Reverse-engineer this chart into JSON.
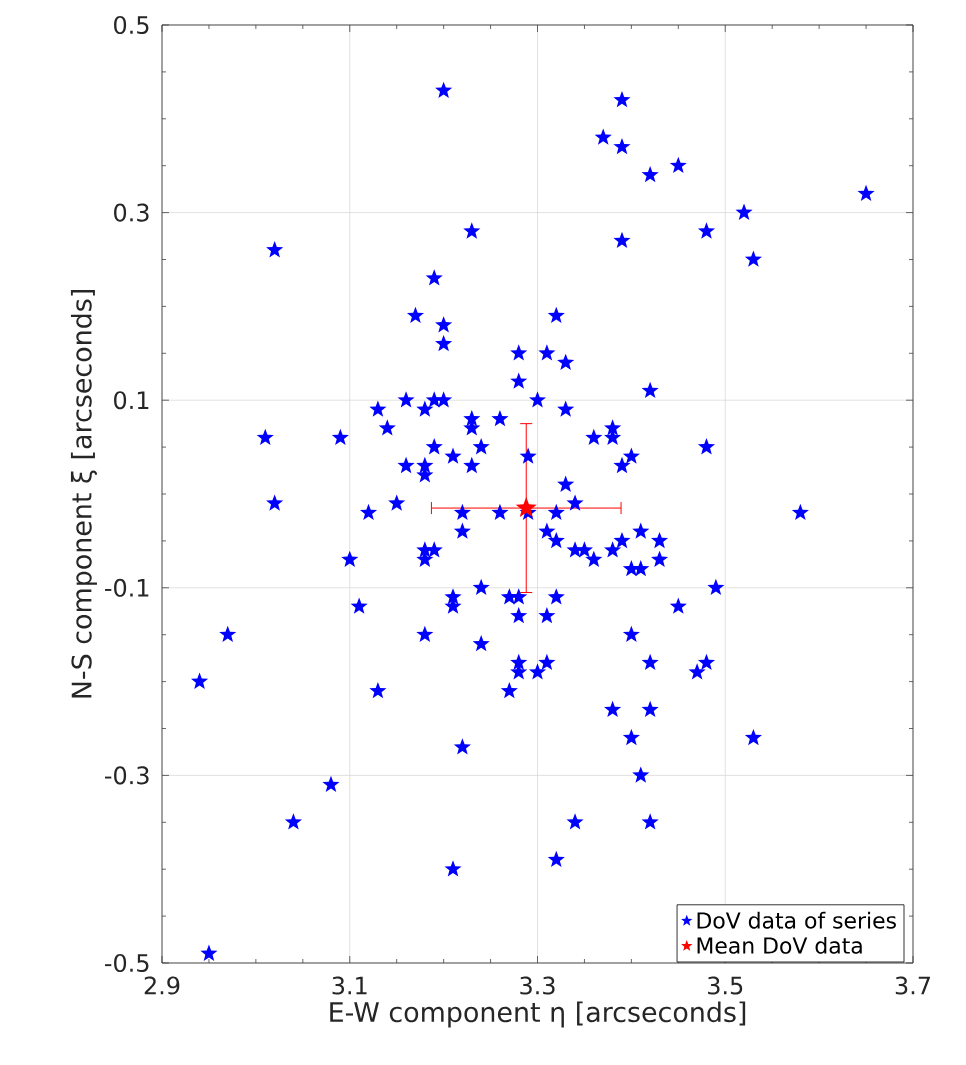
{
  "chart_data": {
    "type": "scatter",
    "xlabel": "E-W component η [arcseconds]",
    "ylabel": "N-S component ξ [arcseconds]",
    "xlim": [
      2.9,
      3.7
    ],
    "ylim": [
      -0.5,
      0.5
    ],
    "xticks": [
      2.9,
      3.1,
      3.3,
      3.5,
      3.7
    ],
    "yticks": [
      -0.5,
      -0.3,
      -0.1,
      0.1,
      0.3,
      0.5
    ],
    "grid": true,
    "legend": "bottom right",
    "marker": "star",
    "series": [
      {
        "name": "DoV data of series",
        "color": "#0000ff",
        "x": [
          3.2,
          3.39,
          3.37,
          3.39,
          3.42,
          3.45,
          3.65,
          3.52,
          3.39,
          3.48,
          3.53,
          3.02,
          3.23,
          3.19,
          3.17,
          3.32,
          3.2,
          3.2,
          3.28,
          3.31,
          3.33,
          3.28,
          3.42,
          3.16,
          3.19,
          3.2,
          3.3,
          3.13,
          3.18,
          3.33,
          3.23,
          3.26,
          3.23,
          3.14,
          3.38,
          3.38,
          3.36,
          3.09,
          3.01,
          3.24,
          3.19,
          3.48,
          3.21,
          3.29,
          3.4,
          3.16,
          3.18,
          3.23,
          3.39,
          3.18,
          3.33,
          3.15,
          3.34,
          3.02,
          3.12,
          3.22,
          3.26,
          3.29,
          3.32,
          3.58,
          3.22,
          3.31,
          3.41,
          3.32,
          3.39,
          3.43,
          3.18,
          3.19,
          3.34,
          3.35,
          3.38,
          3.18,
          3.1,
          3.36,
          3.43,
          3.4,
          3.41,
          3.24,
          3.49,
          3.21,
          3.27,
          3.28,
          3.32,
          3.21,
          3.11,
          3.45,
          3.28,
          3.31,
          3.18,
          3.4,
          2.97,
          3.24,
          3.28,
          3.31,
          3.42,
          3.48,
          3.28,
          3.3,
          3.47,
          3.13,
          3.27,
          2.94,
          3.38,
          3.42,
          3.4,
          3.53,
          3.22,
          3.41,
          3.08,
          3.04,
          3.34,
          3.42,
          3.32,
          3.21,
          2.95
        ],
        "values": [
          0.43,
          0.42,
          0.38,
          0.37,
          0.34,
          0.35,
          0.32,
          0.3,
          0.27,
          0.28,
          0.25,
          0.26,
          0.28,
          0.23,
          0.19,
          0.19,
          0.18,
          0.16,
          0.15,
          0.15,
          0.14,
          0.12,
          0.11,
          0.1,
          0.1,
          0.1,
          0.1,
          0.09,
          0.09,
          0.09,
          0.08,
          0.08,
          0.07,
          0.07,
          0.07,
          0.06,
          0.06,
          0.06,
          0.06,
          0.05,
          0.05,
          0.05,
          0.04,
          0.04,
          0.04,
          0.03,
          0.03,
          0.03,
          0.03,
          0.02,
          0.01,
          -0.01,
          -0.01,
          -0.01,
          -0.02,
          -0.02,
          -0.02,
          -0.02,
          -0.02,
          -0.02,
          -0.04,
          -0.04,
          -0.04,
          -0.05,
          -0.05,
          -0.05,
          -0.06,
          -0.06,
          -0.06,
          -0.06,
          -0.06,
          -0.07,
          -0.07,
          -0.07,
          -0.07,
          -0.08,
          -0.08,
          -0.1,
          -0.1,
          -0.11,
          -0.11,
          -0.11,
          -0.11,
          -0.12,
          -0.12,
          -0.12,
          -0.13,
          -0.13,
          -0.15,
          -0.15,
          -0.15,
          -0.16,
          -0.18,
          -0.18,
          -0.18,
          -0.18,
          -0.19,
          -0.19,
          -0.19,
          -0.21,
          -0.21,
          -0.2,
          -0.23,
          -0.23,
          -0.26,
          -0.26,
          -0.27,
          -0.3,
          -0.31,
          -0.35,
          -0.35,
          -0.35,
          -0.39,
          -0.4,
          -0.49
        ]
      },
      {
        "name": "Mean DoV data",
        "color": "#ff0000",
        "x": [
          3.288
        ],
        "values": [
          -0.015
        ],
        "errors": [
          0.09
        ],
        "xerrors": [
          0.101
        ]
      }
    ]
  }
}
